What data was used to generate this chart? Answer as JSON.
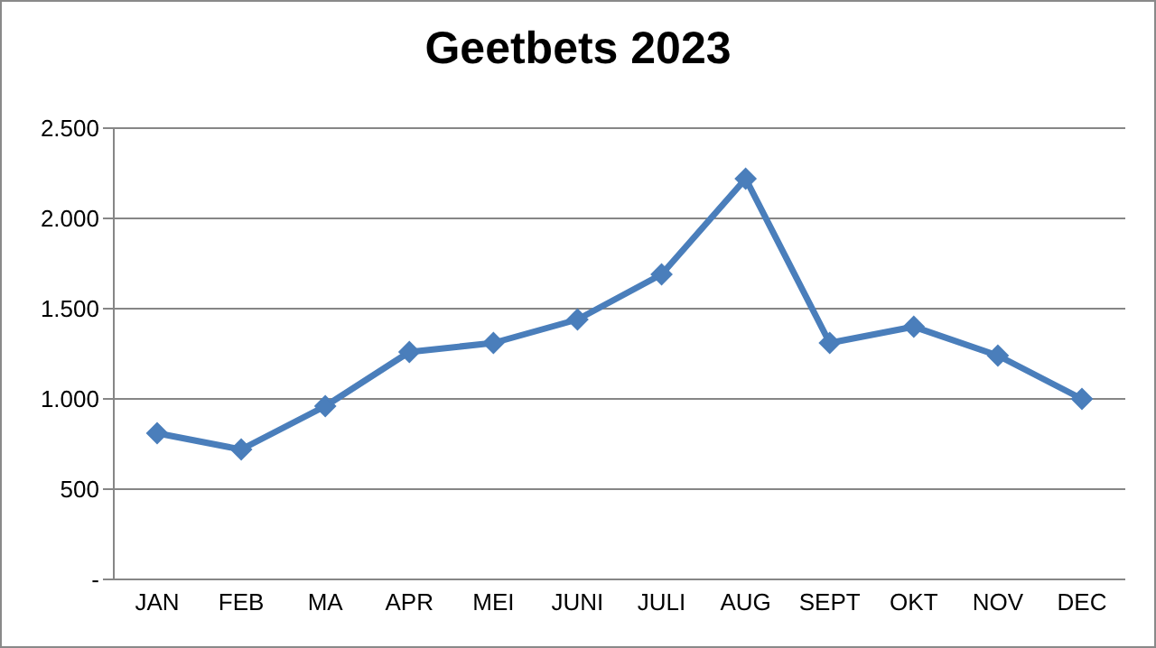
{
  "chart_data": {
    "type": "line",
    "title": "Geetbets 2023",
    "categories": [
      "JAN",
      "FEB",
      "MA",
      "APR",
      "MEI",
      "JUNI",
      "JULI",
      "AUG",
      "SEPT",
      "OKT",
      "NOV",
      "DEC"
    ],
    "series": [
      {
        "color": "#4a7ebb",
        "values": [
          810,
          720,
          960,
          1260,
          1310,
          1440,
          1690,
          2220,
          1310,
          1400,
          1240,
          1000
        ]
      }
    ],
    "ylim": [
      0,
      2500
    ],
    "yticks": [
      {
        "value": 0,
        "label": "-"
      },
      {
        "value": 500,
        "label": "500"
      },
      {
        "value": 1000,
        "label": "1.000"
      },
      {
        "value": 1500,
        "label": "1.500"
      },
      {
        "value": 2000,
        "label": "2.000"
      },
      {
        "value": 2500,
        "label": "2.500"
      }
    ],
    "grid": "y",
    "legend": false,
    "marker": "diamond",
    "line_style": "solid"
  }
}
